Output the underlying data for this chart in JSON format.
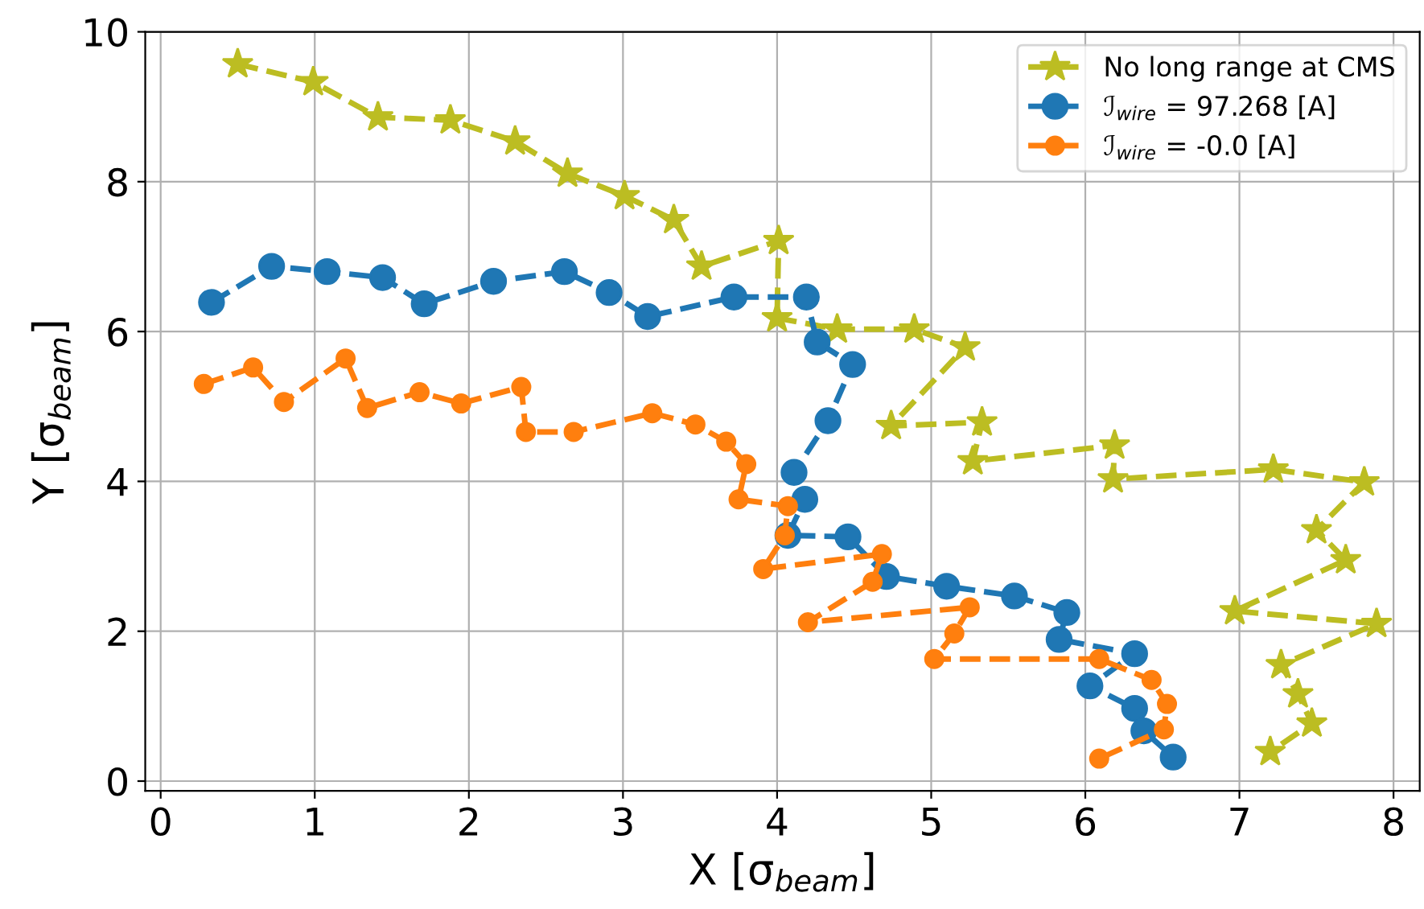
{
  "chart_data": {
    "type": "line",
    "xlabel": "X [σ$_{beam}$]",
    "ylabel": "Y [σ$_{beam}$]",
    "xlim": [
      -0.1,
      8.17
    ],
    "ylim": [
      -0.13,
      10.0
    ],
    "xticks": [
      0,
      1,
      2,
      3,
      4,
      5,
      6,
      7,
      8
    ],
    "yticks": [
      0,
      2,
      4,
      6,
      8,
      10
    ],
    "grid": true,
    "legend": "top right",
    "line_style": "dashed",
    "series": [
      {
        "name": "No long range at CMS",
        "color": "#bcbd22",
        "marker": "star",
        "x": [
          0.5,
          0.99,
          1.41,
          1.88,
          2.3,
          2.64,
          3.01,
          3.33,
          3.51,
          4.01,
          4.0,
          4.39,
          4.89,
          5.22,
          4.74,
          5.33,
          5.27,
          6.19,
          6.18,
          7.22,
          7.81,
          7.5,
          7.69,
          6.97,
          7.89,
          7.27,
          7.38,
          7.47,
          7.2
        ],
        "values": [
          9.57,
          9.33,
          8.86,
          8.82,
          8.54,
          8.11,
          7.81,
          7.49,
          6.87,
          7.21,
          6.18,
          6.03,
          6.03,
          5.79,
          4.74,
          4.79,
          4.27,
          4.48,
          4.03,
          4.16,
          3.99,
          3.35,
          2.95,
          2.27,
          2.1,
          1.55,
          1.16,
          0.77,
          0.39
        ]
      },
      {
        "name": "ℐ$_{wire}$ = 97.268 [A]",
        "color": "#1f77b4",
        "marker": "circle",
        "x": [
          0.33,
          0.72,
          1.08,
          1.44,
          1.71,
          2.16,
          2.62,
          2.91,
          3.16,
          3.72,
          4.19,
          4.26,
          4.49,
          4.33,
          4.11,
          4.18,
          4.07,
          4.46,
          4.71,
          5.1,
          5.54,
          5.88,
          5.83,
          6.32,
          6.03,
          6.32,
          6.38,
          6.57
        ],
        "values": [
          6.39,
          6.87,
          6.8,
          6.72,
          6.37,
          6.67,
          6.8,
          6.52,
          6.2,
          6.46,
          6.46,
          5.86,
          5.56,
          4.81,
          4.12,
          3.76,
          3.28,
          3.26,
          2.73,
          2.6,
          2.47,
          2.25,
          1.89,
          1.7,
          1.27,
          0.97,
          0.67,
          0.32
        ]
      },
      {
        "name": "ℐ$_{wire}$ = -0.0 [A]",
        "color": "#ff7f0e",
        "marker": "circle",
        "x": [
          0.28,
          0.6,
          0.8,
          1.2,
          1.34,
          1.68,
          1.95,
          2.34,
          2.37,
          2.68,
          3.19,
          3.47,
          3.67,
          3.8,
          3.75,
          4.07,
          4.05,
          3.91,
          4.68,
          4.62,
          4.2,
          5.25,
          5.15,
          5.02,
          6.09,
          6.43,
          6.53,
          6.51,
          6.09
        ],
        "values": [
          5.3,
          5.52,
          5.06,
          5.64,
          4.98,
          5.19,
          5.04,
          5.26,
          4.66,
          4.66,
          4.91,
          4.76,
          4.53,
          4.23,
          3.76,
          3.67,
          3.28,
          2.83,
          3.03,
          2.66,
          2.12,
          2.32,
          1.97,
          1.63,
          1.63,
          1.35,
          1.03,
          0.69,
          0.3
        ]
      }
    ]
  }
}
